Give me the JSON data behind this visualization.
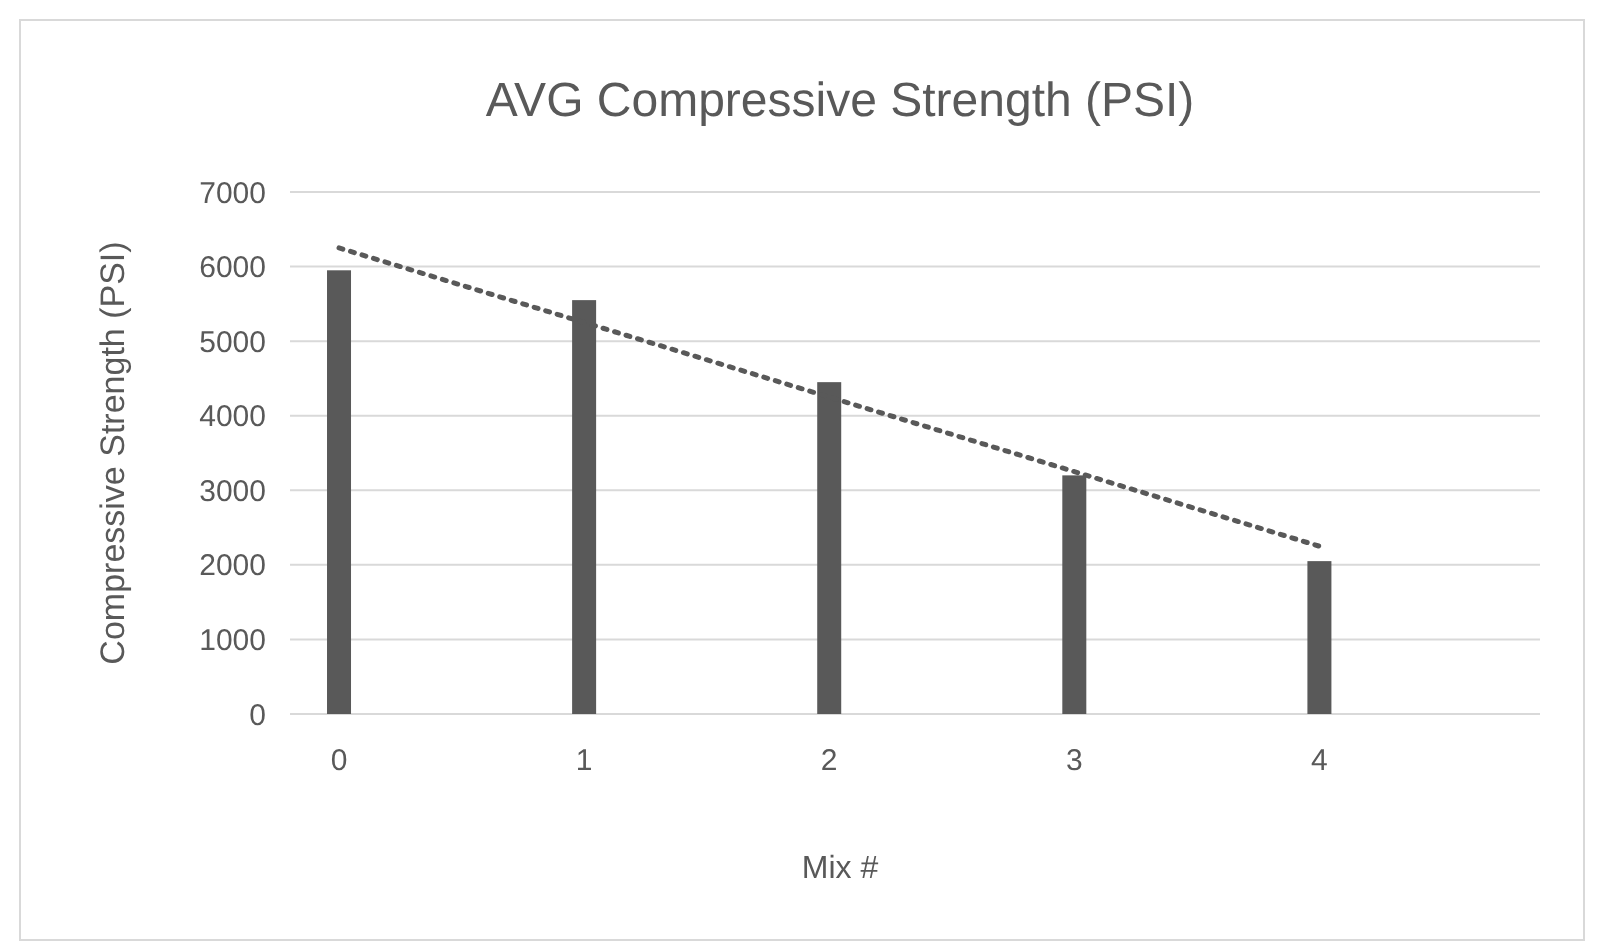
{
  "chart_data": {
    "type": "bar",
    "title": "AVG Compressive Strength (PSI)",
    "xlabel": "Mix #",
    "ylabel": "Compressive Strength (PSI)",
    "categories": [
      "0",
      "1",
      "2",
      "3",
      "4"
    ],
    "series": [
      {
        "color": "#595959",
        "values": [
          5950,
          5550,
          4450,
          3200,
          2050
        ]
      },
      {
        "type": "line",
        "color": "#595959",
        "line_style": "dotted",
        "values": [
          6250,
          5250,
          4250,
          3250,
          2250
        ]
      }
    ],
    "ylim": [
      0,
      7000
    ],
    "yticks": [
      0,
      1000,
      2000,
      3000,
      4000,
      5000,
      6000,
      7000
    ],
    "grid": "y"
  }
}
